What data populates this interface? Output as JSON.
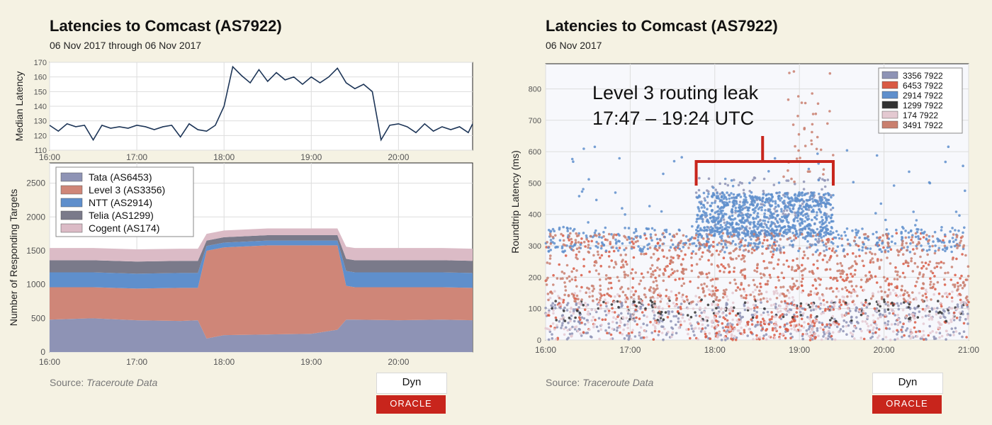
{
  "left": {
    "title": "Latencies to Comcast (AS7922)",
    "subtitle": "06 Nov 2017 through 06 Nov 2017",
    "source_label": "Source:",
    "source_value": "Traceroute Data"
  },
  "right": {
    "title": "Latencies to Comcast (AS7922)",
    "subtitle": "06 Nov 2017",
    "source_label": "Source:",
    "source_value": "Traceroute Data",
    "annotation_line1": "Level 3 routing leak",
    "annotation_line2": "17:47 – 19:24 UTC"
  },
  "logos": {
    "dyn": "Dyn",
    "oracle": "ORACLE"
  },
  "chart_data": [
    {
      "type": "line",
      "title": "",
      "xlabel": "",
      "ylabel": "Median Latency",
      "xlim": [
        16.0,
        20.85
      ],
      "ylim": [
        110,
        170
      ],
      "xticks": [
        "16:00",
        "17:00",
        "18:00",
        "19:00",
        "20:00"
      ],
      "yticks": [
        110,
        120,
        130,
        140,
        150,
        160,
        170
      ],
      "grid": true,
      "color": "#1d3557",
      "x": [
        16.0,
        16.1,
        16.2,
        16.3,
        16.4,
        16.5,
        16.6,
        16.7,
        16.8,
        16.9,
        17.0,
        17.1,
        17.2,
        17.3,
        17.4,
        17.5,
        17.6,
        17.7,
        17.8,
        17.9,
        18.0,
        18.1,
        18.2,
        18.3,
        18.4,
        18.5,
        18.6,
        18.7,
        18.8,
        18.9,
        19.0,
        19.1,
        19.2,
        19.3,
        19.4,
        19.5,
        19.6,
        19.7,
        19.8,
        19.9,
        20.0,
        20.1,
        20.2,
        20.3,
        20.4,
        20.5,
        20.6,
        20.7,
        20.8,
        20.85
      ],
      "y": [
        127,
        123,
        128,
        126,
        127,
        117,
        127,
        125,
        126,
        125,
        127,
        126,
        124,
        126,
        127,
        119,
        128,
        124,
        123,
        127,
        140,
        167,
        161,
        156,
        165,
        157,
        163,
        158,
        160,
        155,
        160,
        156,
        160,
        166,
        156,
        152,
        155,
        150,
        117,
        127,
        128,
        126,
        122,
        128,
        123,
        126,
        124,
        126,
        122,
        128
      ]
    },
    {
      "type": "area",
      "title": "",
      "xlabel": "",
      "ylabel": "Number of Responding Targets",
      "xlim": [
        16.0,
        20.85
      ],
      "ylim": [
        0,
        2800
      ],
      "xticks": [
        "16:00",
        "17:00",
        "18:00",
        "19:00",
        "20:00"
      ],
      "yticks": [
        0,
        500,
        1000,
        1500,
        2000,
        2500
      ],
      "stacked": true,
      "legend_position": "top-left",
      "x": [
        16.0,
        16.5,
        17.0,
        17.5,
        17.7,
        17.8,
        18.0,
        18.5,
        19.0,
        19.3,
        19.4,
        19.5,
        20.0,
        20.5,
        20.85
      ],
      "series": [
        {
          "name": "Tata (AS6453)",
          "color": "#8e93b5",
          "values": [
            480,
            500,
            470,
            460,
            470,
            200,
            250,
            260,
            270,
            330,
            480,
            480,
            470,
            480,
            470
          ]
        },
        {
          "name": "Level 3 (AS3356)",
          "color": "#cf8678",
          "values": [
            480,
            460,
            470,
            490,
            480,
            1300,
            1300,
            1320,
            1310,
            1250,
            500,
            480,
            490,
            480,
            480
          ]
        },
        {
          "name": "NTT (AS2914)",
          "color": "#5f8fcc",
          "values": [
            220,
            220,
            220,
            220,
            220,
            70,
            70,
            70,
            70,
            70,
            220,
            220,
            220,
            220,
            220
          ]
        },
        {
          "name": "Telia (AS1299)",
          "color": "#7a7a8a",
          "values": [
            180,
            180,
            180,
            180,
            180,
            80,
            80,
            80,
            80,
            80,
            180,
            180,
            180,
            180,
            180
          ]
        },
        {
          "name": "Cogent (AS174)",
          "color": "#dbbbc6",
          "values": [
            180,
            180,
            180,
            180,
            180,
            100,
            100,
            100,
            100,
            100,
            180,
            180,
            180,
            180,
            180
          ]
        }
      ]
    },
    {
      "type": "scatter",
      "title": "",
      "xlabel": "",
      "ylabel": "Roundtrip Latency (ms)",
      "xlim": [
        16.0,
        21.0
      ],
      "ylim": [
        0,
        880
      ],
      "xticks": [
        "16:00",
        "17:00",
        "18:00",
        "19:00",
        "20:00",
        "21:00"
      ],
      "yticks": [
        0,
        100,
        200,
        300,
        400,
        500,
        600,
        700,
        800
      ],
      "legend_position": "top-right",
      "leak_window": [
        17.78,
        19.4
      ],
      "series": [
        {
          "name": "3356 7922",
          "color": "#8e93b5",
          "bands": [
            {
              "x": [
                16.0,
                21.0
              ],
              "y": [
                0,
                120
              ],
              "n": 500
            },
            {
              "x": [
                17.78,
                19.4
              ],
              "y": [
                280,
                520
              ],
              "n": 200
            }
          ]
        },
        {
          "name": "6453 7922",
          "color": "#d95a44",
          "bands": [
            {
              "x": [
                16.0,
                21.0
              ],
              "y": [
                0,
                340
              ],
              "n": 500
            },
            {
              "x": [
                18.0,
                19.2
              ],
              "y": [
                0,
                80
              ],
              "n": 90
            }
          ]
        },
        {
          "name": "2914 7922",
          "color": "#5f8fcc",
          "bands": [
            {
              "x": [
                16.0,
                21.0
              ],
              "y": [
                280,
                360
              ],
              "n": 450
            },
            {
              "x": [
                17.78,
                19.4
              ],
              "y": [
                330,
                470
              ],
              "n": 800
            },
            {
              "x": [
                16.0,
                21.0
              ],
              "y": [
                360,
                620
              ],
              "n": 60
            }
          ]
        },
        {
          "name": "1299 7922",
          "color": "#333333",
          "bands": [
            {
              "x": [
                16.0,
                21.0
              ],
              "y": [
                60,
                130
              ],
              "n": 120
            }
          ]
        },
        {
          "name": "174 7922",
          "color": "#e4c9d1",
          "bands": [
            {
              "x": [
                16.0,
                21.0
              ],
              "y": [
                0,
                160
              ],
              "n": 500
            }
          ]
        },
        {
          "name": "3491 7922",
          "color": "#c97f6e",
          "bands": [
            {
              "x": [
                16.0,
                21.0
              ],
              "y": [
                120,
                340
              ],
              "n": 700
            },
            {
              "x": [
                18.8,
                19.4
              ],
              "y": [
                500,
                870
              ],
              "n": 40
            }
          ]
        }
      ]
    }
  ]
}
